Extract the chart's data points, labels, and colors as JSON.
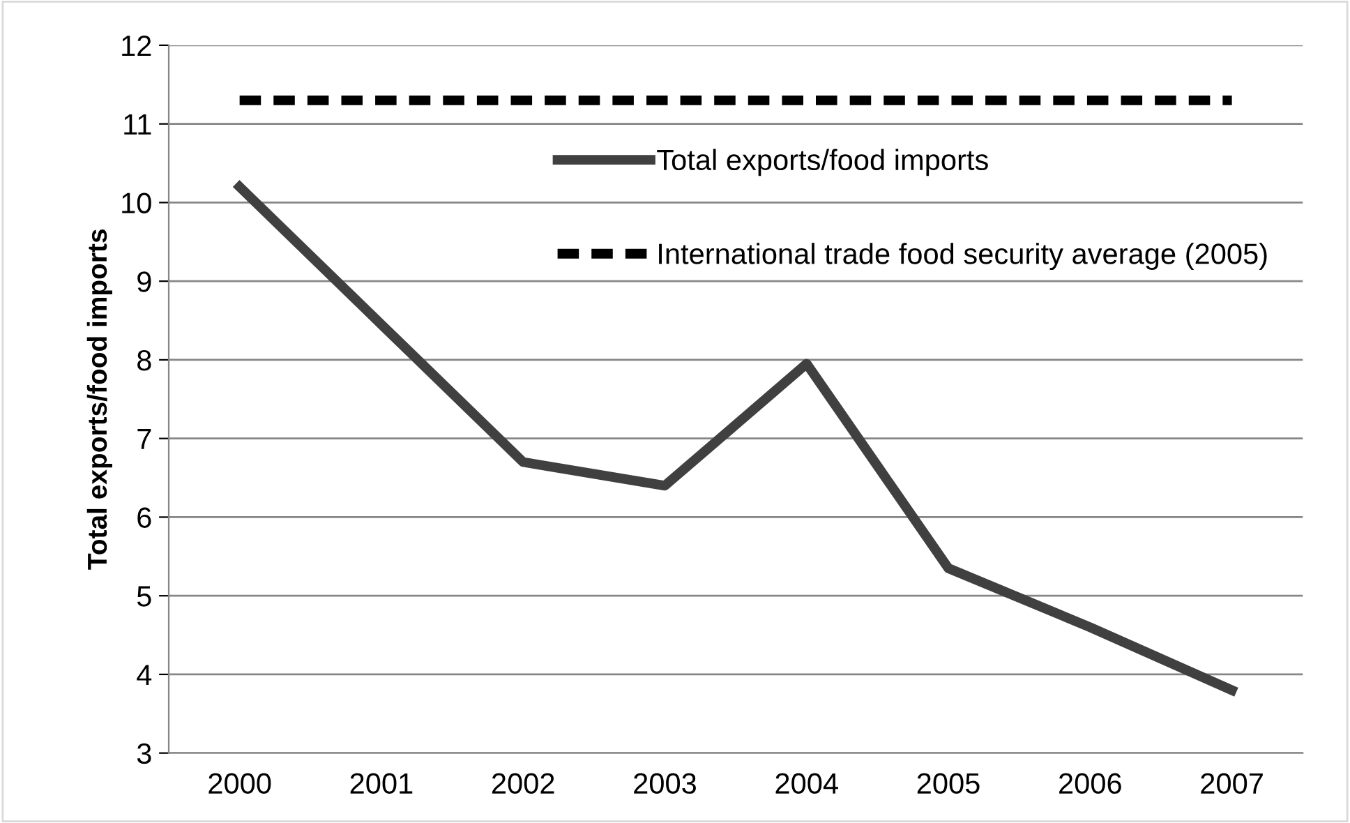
{
  "chart_data": {
    "type": "line",
    "ylabel": "Total exports/food imports",
    "categories": [
      "2000",
      "2001",
      "2002",
      "2003",
      "2004",
      "2005",
      "2006",
      "2007"
    ],
    "series": [
      {
        "name": "Total exports/food imports",
        "color": "#404040",
        "line_style": "solid",
        "values": [
          10.2,
          8.45,
          6.7,
          6.4,
          7.95,
          5.35,
          4.6,
          3.8
        ]
      },
      {
        "name": "International trade food security average (2005)",
        "color": "#000000",
        "line_style": "dashed",
        "values": [
          11.3,
          11.3,
          11.3,
          11.3,
          11.3,
          11.3,
          11.3,
          11.3
        ]
      }
    ],
    "ylim": [
      3,
      12
    ],
    "yticks": [
      3,
      4,
      5,
      6,
      7,
      8,
      9,
      10,
      11,
      12
    ],
    "grid": "y",
    "legend": "top right"
  }
}
